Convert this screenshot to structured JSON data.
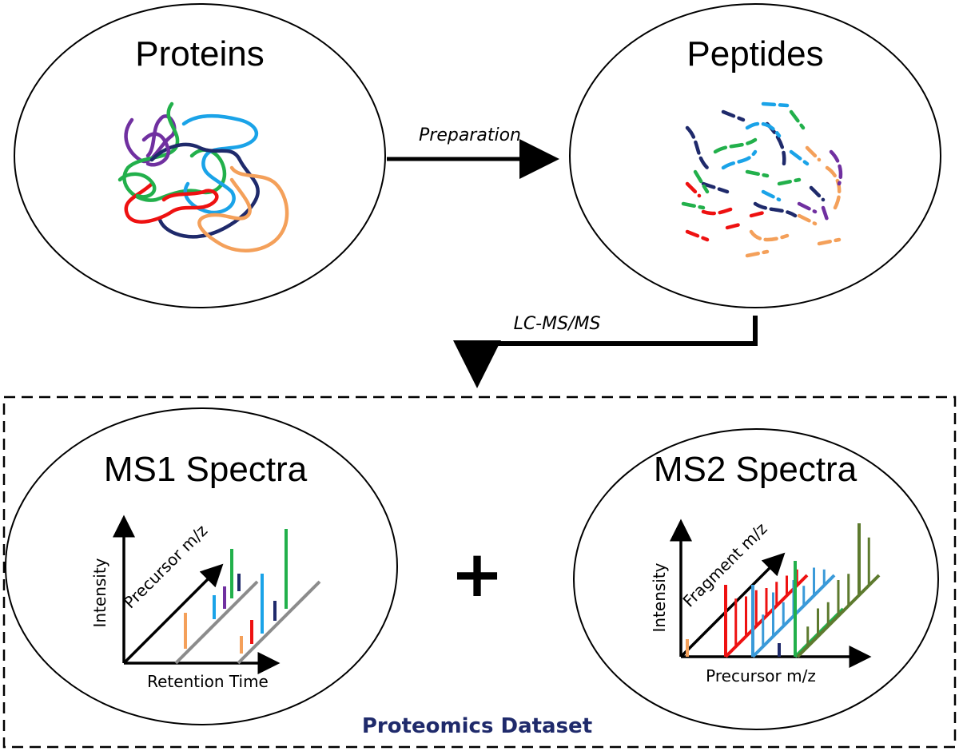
{
  "nodes": {
    "proteins": {
      "title": "Proteins"
    },
    "peptides": {
      "title": "Peptides"
    },
    "ms1": {
      "title": "MS1 Spectra",
      "y_axis": "Intensity",
      "diag_axis": "Precursor m/z",
      "x_axis": "Retention Time"
    },
    "ms2": {
      "title": "MS2 Spectra",
      "y_axis": "Intensity",
      "diag_axis": "Fragment m/z",
      "x_axis": "Precursor m/z"
    }
  },
  "edges": {
    "preparation": {
      "label": "Preparation"
    },
    "lcms": {
      "label": "LC-MS/MS"
    }
  },
  "plus_sign": "+",
  "dataset": {
    "label": "Proteomics Dataset",
    "color": "#1f2a6b"
  },
  "colors": {
    "purple": "#7030a0",
    "blue": "#1aa3e8",
    "navy": "#1f2a6b",
    "green": "#22b04b",
    "red": "#ee1111",
    "orange": "#f4a05a",
    "gray": "#8c8c8c",
    "olive": "#5d7a2e",
    "ms2_blue": "#3a9ad9"
  }
}
